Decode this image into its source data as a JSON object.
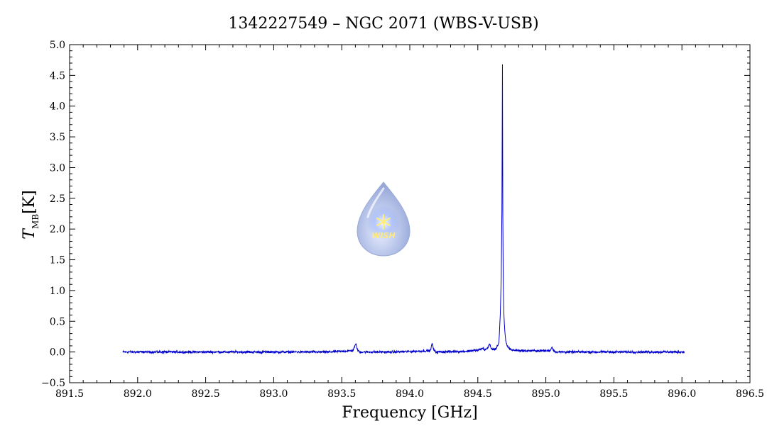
{
  "chart_data": {
    "type": "line",
    "title": "1342227549 – NGC 2071 (WBS-V-USB)",
    "xlabel": "Frequency [GHz]",
    "ylabel_main": "T",
    "ylabel_sub": "MB",
    "ylabel_unit": "[K]",
    "xlim": [
      891.5,
      896.5
    ],
    "ylim": [
      -0.5,
      5.0
    ],
    "x_ticks": [
      "891.5",
      "892.0",
      "892.5",
      "893.0",
      "893.5",
      "894.0",
      "894.5",
      "895.0",
      "895.5",
      "896.0",
      "896.5"
    ],
    "y_ticks": [
      "−0.5",
      "0.0",
      "0.5",
      "1.0",
      "1.5",
      "2.0",
      "2.5",
      "3.0",
      "3.5",
      "4.0",
      "4.5",
      "5.0"
    ],
    "grid": false,
    "line_color": "#0000cc",
    "series": [
      {
        "x": [
          891.89,
          892.2,
          892.6,
          893.0,
          893.4,
          893.58,
          893.605,
          893.615,
          893.63,
          893.9,
          894.15,
          894.165,
          894.175,
          894.19,
          894.4,
          894.5,
          894.54,
          894.55,
          894.57,
          894.585,
          894.6,
          894.63,
          894.655,
          894.665,
          894.672,
          894.677,
          894.681,
          894.684,
          894.687,
          894.692,
          894.698,
          894.705,
          894.72,
          894.75,
          894.85,
          895.03,
          895.045,
          895.055,
          895.07,
          895.3,
          895.6,
          895.9,
          896.02
        ],
        "y": [
          0.0,
          0.0,
          0.0,
          0.0,
          0.0,
          0.02,
          0.13,
          0.04,
          0.0,
          0.0,
          0.02,
          0.14,
          0.04,
          0.0,
          0.01,
          0.03,
          0.06,
          0.03,
          0.06,
          0.13,
          0.05,
          0.04,
          0.15,
          0.6,
          1.2,
          2.3,
          4.68,
          2.2,
          1.1,
          0.6,
          0.35,
          0.18,
          0.08,
          0.03,
          0.02,
          0.02,
          0.08,
          0.03,
          0.0,
          0.0,
          0.0,
          0.0,
          0.0
        ]
      }
    ],
    "noise_sigma": 0.012,
    "logo_text": "WISH"
  }
}
